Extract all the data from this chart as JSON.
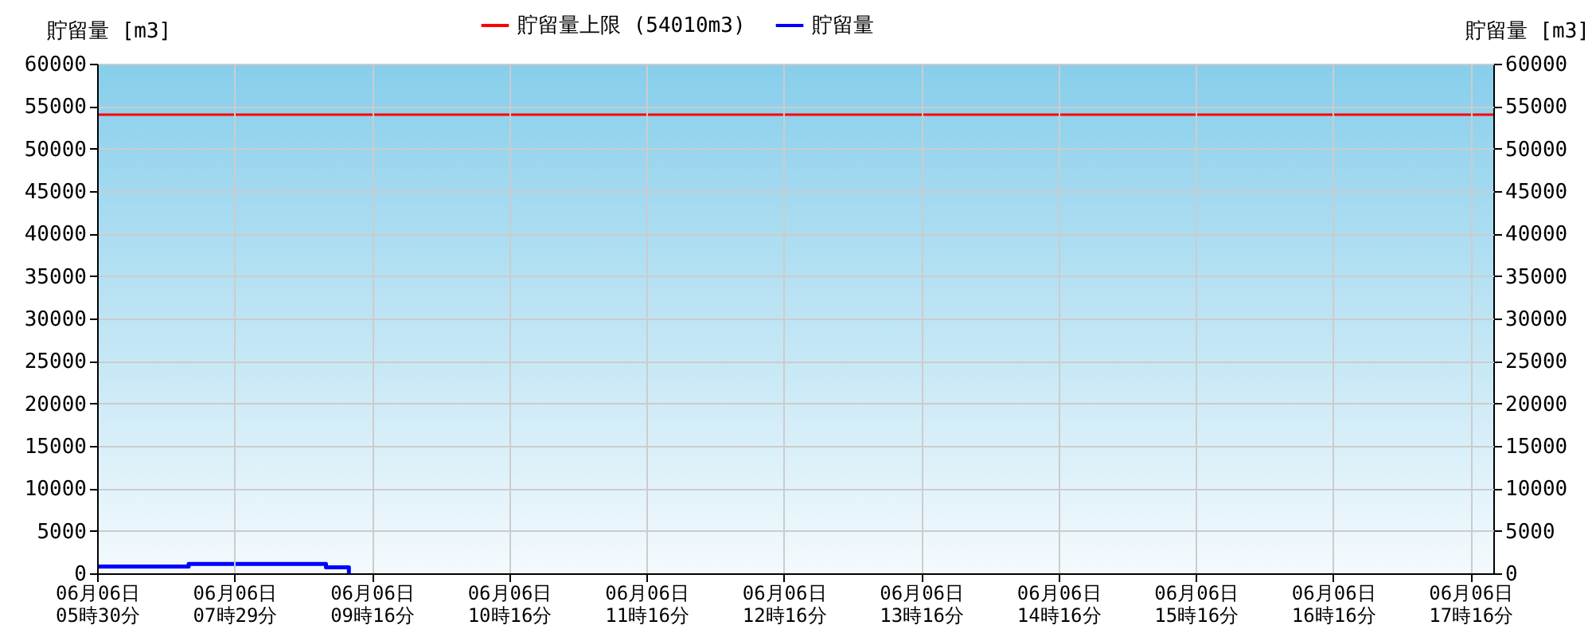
{
  "chart_data": {
    "type": "step",
    "ylabel": "貯留量 [m3]",
    "y2label": "貯留量 [m3]",
    "categories": [
      "06月06日\n05時30分",
      null,
      null,
      null,
      null,
      null,
      "06月06日\n07時29分",
      null,
      null,
      null,
      null,
      null,
      "06月06日\n09時16分",
      null,
      null,
      null,
      null,
      null,
      "06月06日\n10時16分",
      null,
      null,
      null,
      null,
      null,
      "06月06日\n11時16分",
      null,
      null,
      null,
      null,
      null,
      "06月06日\n12時16分",
      null,
      null,
      null,
      null,
      null,
      "06月06日\n13時16分",
      null,
      null,
      null,
      null,
      null,
      "06月06日\n14時16分",
      null,
      null,
      null,
      null,
      null,
      "06月06日\n15時16分",
      null,
      null,
      null,
      null,
      null,
      "06月06日\n16時16分",
      null,
      null,
      null,
      null,
      null,
      "06月06日\n17時16分",
      null
    ],
    "series": [
      {
        "name": "貯留量",
        "color": "#0000ff",
        "values": [
          800,
          800,
          800,
          800,
          1100,
          1100,
          1100,
          1100,
          1100,
          1100,
          700,
          0,
          null,
          null,
          null,
          null,
          null,
          null,
          null,
          null,
          null,
          null,
          null,
          null,
          null,
          null,
          null,
          null,
          null,
          null,
          null,
          null,
          null,
          null,
          null,
          null,
          null,
          null,
          null,
          null,
          null,
          null,
          null,
          null,
          null,
          null,
          null,
          null,
          null,
          null,
          null,
          null,
          null,
          null,
          null,
          null,
          null,
          null,
          null,
          null,
          null,
          null
        ]
      }
    ],
    "ref_lines": [
      {
        "axis": "y",
        "value": 54010,
        "label": "貯留量上限 (54010m3)",
        "color": "#ff0000"
      }
    ],
    "ylim": [
      0,
      60000
    ],
    "yticks": [
      0,
      5000,
      10000,
      15000,
      20000,
      25000,
      30000,
      35000,
      40000,
      45000,
      50000,
      55000,
      60000
    ],
    "y2lim": [
      0,
      60000
    ],
    "y2ticks": [
      0,
      5000,
      10000,
      15000,
      20000,
      25000,
      30000,
      35000,
      40000,
      45000,
      50000,
      55000,
      60000
    ],
    "grid": true,
    "legend": "top",
    "line_style": "solid"
  }
}
